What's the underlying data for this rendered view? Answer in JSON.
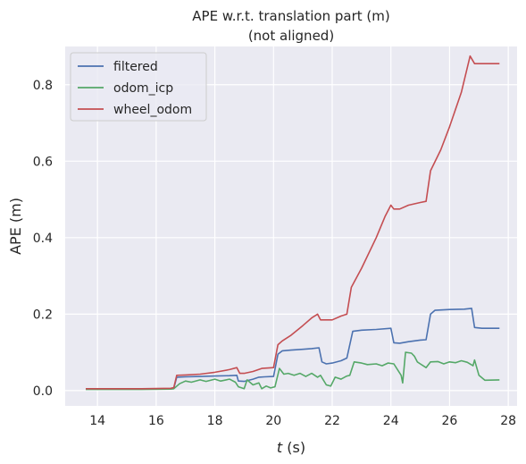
{
  "chart_data": {
    "type": "line",
    "title_line1": "APE w.r.t. translation part (m)",
    "title_line2": "(not aligned)",
    "xlabel_var": "t",
    "xlabel_unit": " (s)",
    "ylabel": "APE (m)",
    "xlim": [
      12.9,
      28.3
    ],
    "ylim": [
      -0.04,
      0.9
    ],
    "xticks": [
      14,
      16,
      18,
      20,
      22,
      24,
      26,
      28
    ],
    "yticks": [
      0.0,
      0.2,
      0.4,
      0.6,
      0.8
    ],
    "xtick_labels": [
      "14",
      "16",
      "18",
      "20",
      "22",
      "24",
      "26",
      "28"
    ],
    "ytick_labels": [
      "0.0",
      "0.2",
      "0.4",
      "0.6",
      "0.8"
    ],
    "grid": true,
    "legend": "top-left",
    "series": [
      {
        "name": "filtered",
        "color": "#4c72b0",
        "points": [
          [
            13.6,
            0.004
          ],
          [
            14.5,
            0.004
          ],
          [
            15.5,
            0.004
          ],
          [
            16.5,
            0.005
          ],
          [
            16.6,
            0.006
          ],
          [
            16.7,
            0.035
          ],
          [
            17.0,
            0.036
          ],
          [
            17.5,
            0.037
          ],
          [
            18.0,
            0.038
          ],
          [
            18.5,
            0.039
          ],
          [
            18.75,
            0.04
          ],
          [
            18.8,
            0.025
          ],
          [
            19.0,
            0.024
          ],
          [
            19.3,
            0.03
          ],
          [
            19.5,
            0.035
          ],
          [
            19.7,
            0.036
          ],
          [
            20.0,
            0.037
          ],
          [
            20.15,
            0.095
          ],
          [
            20.3,
            0.104
          ],
          [
            20.6,
            0.106
          ],
          [
            21.0,
            0.108
          ],
          [
            21.3,
            0.11
          ],
          [
            21.55,
            0.112
          ],
          [
            21.65,
            0.075
          ],
          [
            21.8,
            0.07
          ],
          [
            22.0,
            0.072
          ],
          [
            22.3,
            0.078
          ],
          [
            22.5,
            0.085
          ],
          [
            22.7,
            0.155
          ],
          [
            23.0,
            0.158
          ],
          [
            23.5,
            0.16
          ],
          [
            24.0,
            0.163
          ],
          [
            24.1,
            0.125
          ],
          [
            24.3,
            0.124
          ],
          [
            24.6,
            0.128
          ],
          [
            25.0,
            0.132
          ],
          [
            25.2,
            0.133
          ],
          [
            25.35,
            0.2
          ],
          [
            25.5,
            0.21
          ],
          [
            26.0,
            0.212
          ],
          [
            26.5,
            0.213
          ],
          [
            26.75,
            0.215
          ],
          [
            26.85,
            0.165
          ],
          [
            27.1,
            0.163
          ],
          [
            27.7,
            0.163
          ]
        ]
      },
      {
        "name": "odom_icp",
        "color": "#55a868",
        "points": [
          [
            13.6,
            0.003
          ],
          [
            14.5,
            0.003
          ],
          [
            15.5,
            0.003
          ],
          [
            16.5,
            0.004
          ],
          [
            16.6,
            0.005
          ],
          [
            16.8,
            0.018
          ],
          [
            17.0,
            0.025
          ],
          [
            17.2,
            0.022
          ],
          [
            17.5,
            0.028
          ],
          [
            17.7,
            0.024
          ],
          [
            18.0,
            0.03
          ],
          [
            18.2,
            0.025
          ],
          [
            18.5,
            0.03
          ],
          [
            18.7,
            0.022
          ],
          [
            18.8,
            0.01
          ],
          [
            19.0,
            0.005
          ],
          [
            19.1,
            0.028
          ],
          [
            19.3,
            0.015
          ],
          [
            19.5,
            0.02
          ],
          [
            19.6,
            0.005
          ],
          [
            19.75,
            0.012
          ],
          [
            19.9,
            0.007
          ],
          [
            20.05,
            0.01
          ],
          [
            20.2,
            0.058
          ],
          [
            20.35,
            0.043
          ],
          [
            20.5,
            0.045
          ],
          [
            20.7,
            0.04
          ],
          [
            20.9,
            0.045
          ],
          [
            21.1,
            0.037
          ],
          [
            21.3,
            0.045
          ],
          [
            21.5,
            0.035
          ],
          [
            21.6,
            0.04
          ],
          [
            21.8,
            0.015
          ],
          [
            21.95,
            0.012
          ],
          [
            22.1,
            0.035
          ],
          [
            22.3,
            0.03
          ],
          [
            22.5,
            0.038
          ],
          [
            22.6,
            0.04
          ],
          [
            22.75,
            0.075
          ],
          [
            23.0,
            0.072
          ],
          [
            23.2,
            0.068
          ],
          [
            23.5,
            0.07
          ],
          [
            23.7,
            0.065
          ],
          [
            23.9,
            0.072
          ],
          [
            24.1,
            0.07
          ],
          [
            24.35,
            0.04
          ],
          [
            24.4,
            0.02
          ],
          [
            24.5,
            0.1
          ],
          [
            24.7,
            0.098
          ],
          [
            24.8,
            0.09
          ],
          [
            24.9,
            0.075
          ],
          [
            25.0,
            0.07
          ],
          [
            25.2,
            0.06
          ],
          [
            25.35,
            0.075
          ],
          [
            25.6,
            0.076
          ],
          [
            25.8,
            0.07
          ],
          [
            26.0,
            0.075
          ],
          [
            26.2,
            0.073
          ],
          [
            26.4,
            0.078
          ],
          [
            26.6,
            0.074
          ],
          [
            26.8,
            0.065
          ],
          [
            26.85,
            0.08
          ],
          [
            27.0,
            0.04
          ],
          [
            27.2,
            0.027
          ],
          [
            27.7,
            0.028
          ]
        ]
      },
      {
        "name": "wheel_odom",
        "color": "#c44e52",
        "points": [
          [
            13.6,
            0.005
          ],
          [
            14.5,
            0.005
          ],
          [
            15.5,
            0.005
          ],
          [
            16.5,
            0.006
          ],
          [
            16.6,
            0.008
          ],
          [
            16.7,
            0.04
          ],
          [
            17.0,
            0.041
          ],
          [
            17.5,
            0.043
          ],
          [
            18.0,
            0.048
          ],
          [
            18.5,
            0.055
          ],
          [
            18.75,
            0.06
          ],
          [
            18.85,
            0.045
          ],
          [
            19.0,
            0.045
          ],
          [
            19.3,
            0.05
          ],
          [
            19.6,
            0.058
          ],
          [
            20.0,
            0.06
          ],
          [
            20.15,
            0.12
          ],
          [
            20.3,
            0.13
          ],
          [
            20.6,
            0.145
          ],
          [
            21.0,
            0.17
          ],
          [
            21.3,
            0.19
          ],
          [
            21.5,
            0.2
          ],
          [
            21.6,
            0.185
          ],
          [
            22.0,
            0.185
          ],
          [
            22.3,
            0.195
          ],
          [
            22.5,
            0.2
          ],
          [
            22.65,
            0.27
          ],
          [
            23.0,
            0.32
          ],
          [
            23.5,
            0.4
          ],
          [
            23.8,
            0.455
          ],
          [
            24.0,
            0.485
          ],
          [
            24.1,
            0.475
          ],
          [
            24.3,
            0.475
          ],
          [
            24.6,
            0.485
          ],
          [
            25.0,
            0.492
          ],
          [
            25.2,
            0.495
          ],
          [
            25.35,
            0.575
          ],
          [
            25.7,
            0.63
          ],
          [
            26.0,
            0.69
          ],
          [
            26.4,
            0.78
          ],
          [
            26.7,
            0.875
          ],
          [
            26.85,
            0.855
          ],
          [
            27.7,
            0.855
          ]
        ]
      }
    ]
  }
}
